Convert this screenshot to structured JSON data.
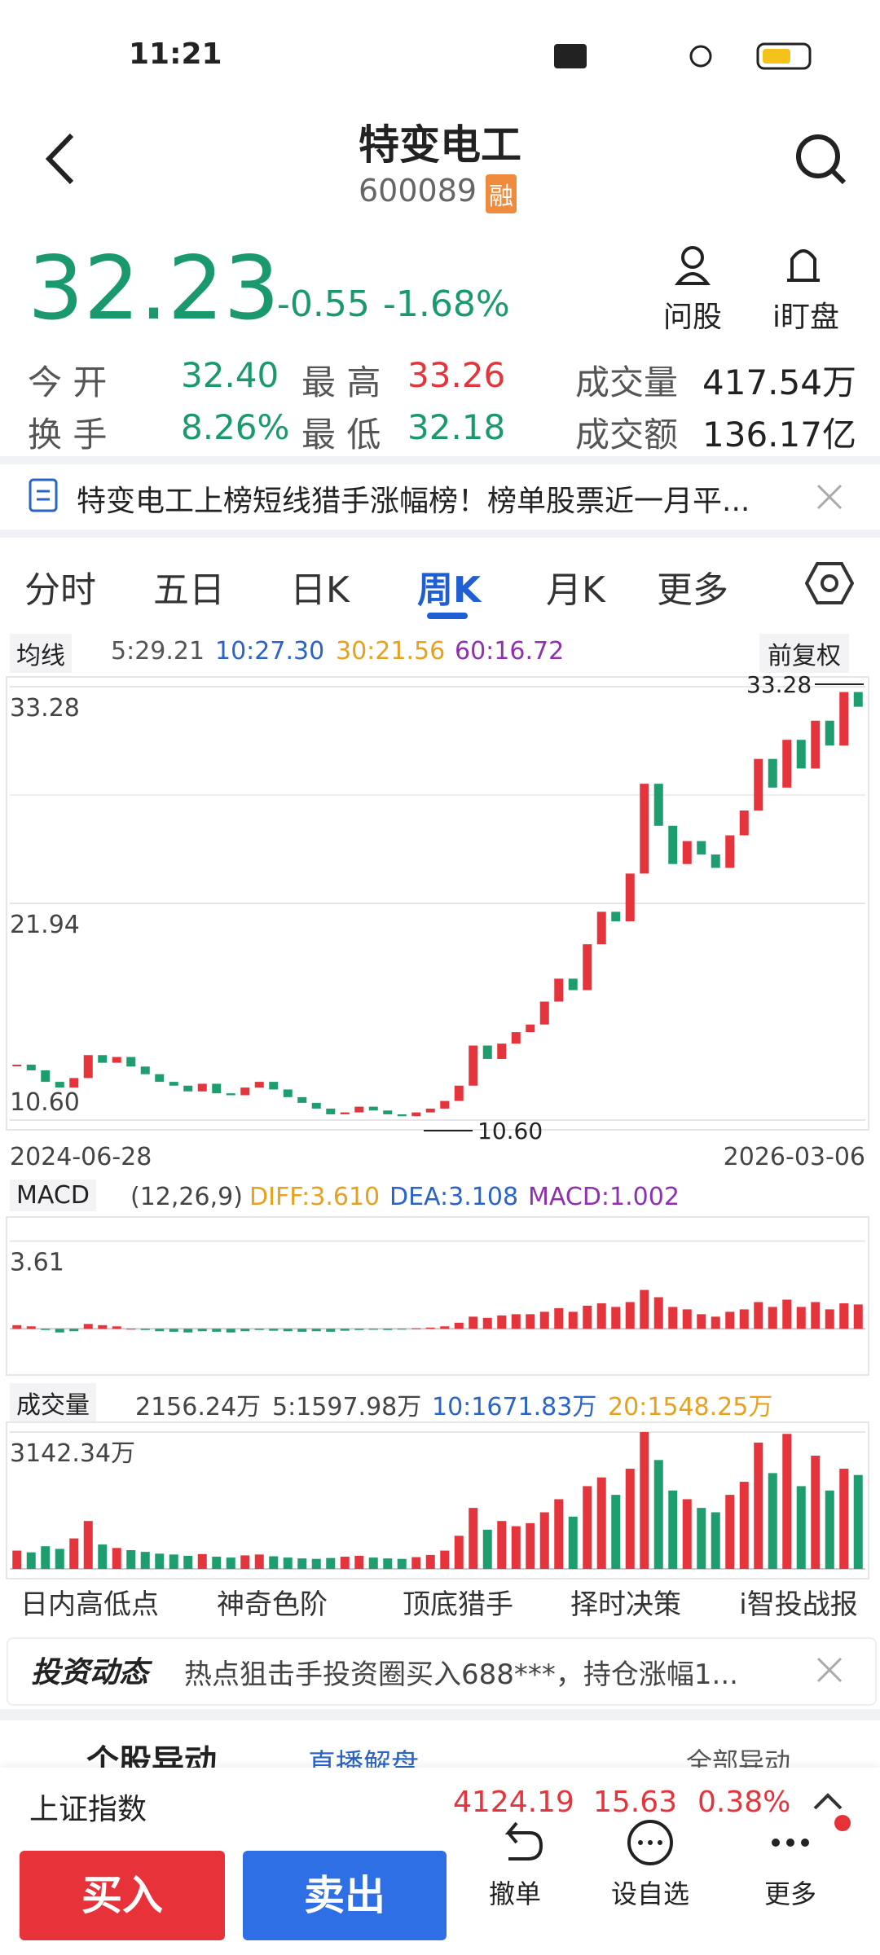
{
  "status": {
    "time": "11:21"
  },
  "header": {
    "title": "特变电工",
    "code": "600089",
    "badge": "融"
  },
  "quote": {
    "price": "32.23",
    "change": "-0.55",
    "pct": "-1.68%"
  },
  "actions": [
    "问股",
    "i盯盘"
  ],
  "stats": [
    [
      "今 开",
      "32.40",
      "最 高",
      "33.26",
      "成交量",
      "417.54万"
    ],
    [
      "换 手",
      "8.26%",
      "最 低",
      "32.18",
      "成交额",
      "136.17亿"
    ]
  ],
  "news": "特变电工上榜短线猎手涨幅榜！榜单股票近一月平...",
  "tabs": [
    "分时",
    "五日",
    "日K",
    "周K",
    "月K",
    "更多"
  ],
  "ma_bar": {
    "label": "均线",
    "items": [
      "5:29.21",
      "10:27.30",
      "30:21.56",
      "60:16.72"
    ],
    "adjust": "前复权"
  },
  "chart_data": [
    {
      "type": "candlestick",
      "ylim": [
        10.6,
        33.28
      ],
      "yticks": [
        33.28,
        21.94,
        {
          "value": 10.6,
          "label": "10.60"
        }
      ],
      "xlabels": [
        "2024-06-28",
        "2026-03-06"
      ],
      "annotations": [
        "33.28",
        "10.60"
      ],
      "up_color": "#e5343c",
      "down_color": "#1e9e6e",
      "values": [
        13.5,
        13.2,
        12.6,
        12.3,
        12.8,
        14.0,
        13.6,
        13.9,
        13.4,
        13.0,
        12.6,
        12.4,
        12.1,
        12.5,
        12.0,
        11.9,
        12.3,
        12.6,
        12.2,
        11.8,
        11.5,
        11.2,
        10.9,
        11.0,
        11.3,
        11.1,
        10.9,
        10.8,
        11.0,
        11.2,
        11.6,
        12.4,
        14.5,
        13.8,
        14.6,
        15.2,
        15.6,
        16.8,
        18.0,
        17.4,
        19.8,
        21.5,
        21.0,
        23.5,
        28.2,
        26.0,
        24.0,
        25.2,
        24.5,
        23.8,
        25.5,
        26.8,
        29.5,
        28.0,
        30.5,
        29.0,
        31.5,
        30.2,
        33.0,
        32.23
      ]
    },
    {
      "type": "bar",
      "label": "MACD",
      "params": "(12,26,9)",
      "items": [
        "DIFF:3.610",
        "DEA:3.108",
        "MACD:1.002"
      ],
      "ylim": [
        -1.5,
        4.2
      ],
      "yticks": [
        3.61
      ],
      "values": [
        0.15,
        0.1,
        -0.05,
        -0.15,
        -0.1,
        0.2,
        0.15,
        0.1,
        0,
        -0.05,
        -0.1,
        -0.12,
        -0.15,
        -0.1,
        -0.12,
        -0.15,
        -0.1,
        -0.05,
        -0.08,
        -0.1,
        -0.12,
        -0.1,
        -0.12,
        -0.08,
        -0.05,
        -0.04,
        -0.05,
        -0.03,
        0.02,
        0.05,
        0.1,
        0.25,
        0.5,
        0.45,
        0.55,
        0.6,
        0.6,
        0.7,
        0.85,
        0.7,
        0.95,
        1.05,
        0.9,
        1.1,
        1.6,
        1.3,
        0.9,
        0.8,
        0.6,
        0.5,
        0.7,
        0.8,
        1.1,
        0.9,
        1.2,
        0.9,
        1.1,
        0.8,
        1.05,
        1.002
      ]
    },
    {
      "type": "bar",
      "label": "成交量",
      "items": [
        "2156.24万",
        "5:1597.98万",
        "10:1671.83万",
        "20:1548.25万"
      ],
      "ylim": [
        0,
        3142.34
      ],
      "yticks": [
        {
          "value": 3142.34,
          "label": "3142.34万"
        }
      ],
      "values": [
        420,
        380,
        520,
        460,
        700,
        1100,
        560,
        480,
        430,
        390,
        350,
        330,
        300,
        340,
        280,
        260,
        310,
        330,
        290,
        260,
        240,
        230,
        250,
        280,
        300,
        260,
        240,
        230,
        270,
        320,
        420,
        760,
        1400,
        900,
        1100,
        980,
        1050,
        1300,
        1600,
        1200,
        1900,
        2100,
        1700,
        2300,
        3142.34,
        2500,
        1800,
        1600,
        1400,
        1300,
        1700,
        2000,
        2900,
        2200,
        3100,
        1900,
        2600,
        1800,
        2300,
        2156.24
      ]
    }
  ],
  "tools": [
    "日内高低点",
    "神奇色阶",
    "顶底猎手",
    "择时决策",
    "i智投战报"
  ],
  "feed": {
    "brand": "投资动态",
    "text": "热点狙击手投资圈买入688***，持仓涨幅1..."
  },
  "movers": {
    "title": "个股异动",
    "live": "直播解盘",
    "all": "全部异动"
  },
  "index": [
    "上证指数",
    "4124.19",
    "15.63",
    "0.38%"
  ],
  "bottom": [
    "买入",
    "卖出",
    "撤单",
    "设自选",
    "更多"
  ]
}
